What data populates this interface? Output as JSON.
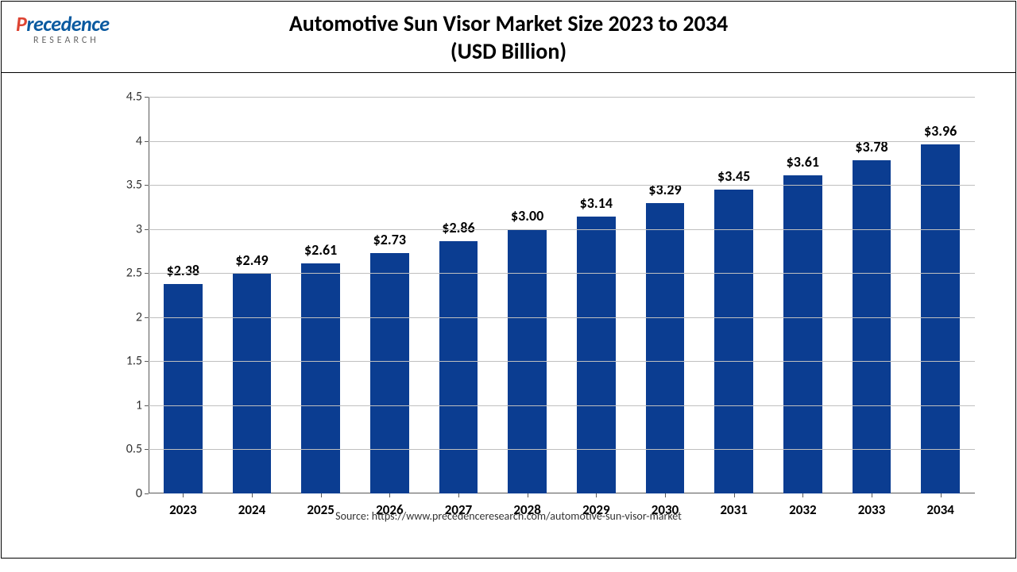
{
  "header": {
    "logo_main": "Precedence",
    "logo_sub": "RESEARCH",
    "title_line1": "Automotive Sun Visor Market Size 2023 to 2034",
    "title_line2": "(USD Billion)"
  },
  "chart": {
    "type": "bar",
    "categories": [
      "2023",
      "2024",
      "2025",
      "2026",
      "2027",
      "2028",
      "2029",
      "2030",
      "2031",
      "2032",
      "2033",
      "2034"
    ],
    "values": [
      2.38,
      2.49,
      2.61,
      2.73,
      2.86,
      3.0,
      3.14,
      3.29,
      3.45,
      3.61,
      3.78,
      3.96
    ],
    "value_labels": [
      "$2.38",
      "$2.49",
      "$2.61",
      "$2.73",
      "$2.86",
      "$3.00",
      "$3.14",
      "$3.29",
      "$3.45",
      "$3.61",
      "$3.78",
      "$3.96"
    ],
    "bar_color": "#0b3d91",
    "ylim": [
      0,
      4.5
    ],
    "yticks": [
      0,
      0.5,
      1,
      1.5,
      2,
      2.5,
      3,
      3.5,
      4,
      4.5
    ],
    "ytick_labels": [
      "0",
      "0.5",
      "1",
      "1.5",
      "2",
      "2.5",
      "3",
      "3.5",
      "4",
      "4.5"
    ],
    "grid_color": "#bfbfbf",
    "axis_color": "#595959",
    "background_color": "#ffffff",
    "bar_width_ratio": 0.56,
    "label_fontsize": 18,
    "axis_fontsize": 17
  },
  "source": "Source: https://www.precedenceresearch.com/automotive-sun-visor-market"
}
